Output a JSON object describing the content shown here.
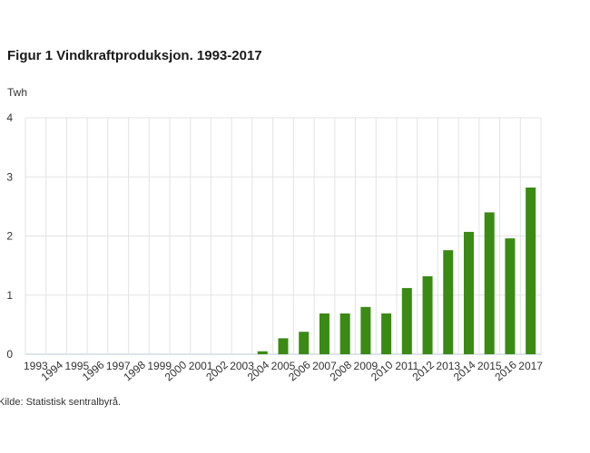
{
  "chart_data": {
    "type": "bar",
    "title": "Figur 1 Vindkraftproduksjon. 1993-2017",
    "ylabel": "Twh",
    "xlabel": "",
    "source": "Kilde: Statistisk sentralbyrå.",
    "ylim": [
      0,
      4
    ],
    "yticks": [
      0,
      1,
      2,
      3,
      4
    ],
    "grid": true,
    "bar_color": "#3a8a14",
    "categories": [
      "1993",
      "1994",
      "1995",
      "1996",
      "1997",
      "1998",
      "1999",
      "2000",
      "2001",
      "2002",
      "2003",
      "2004",
      "2005",
      "2006",
      "2007",
      "2008",
      "2009",
      "2010",
      "2011",
      "2012",
      "2013",
      "2014",
      "2015",
      "2016",
      "2017"
    ],
    "values": [
      0,
      0,
      0,
      0,
      0,
      0,
      0,
      0,
      0,
      0,
      0,
      0.05,
      0.27,
      0.38,
      0.69,
      0.69,
      0.8,
      0.69,
      1.12,
      1.32,
      1.76,
      2.07,
      2.4,
      1.96,
      2.82
    ]
  }
}
